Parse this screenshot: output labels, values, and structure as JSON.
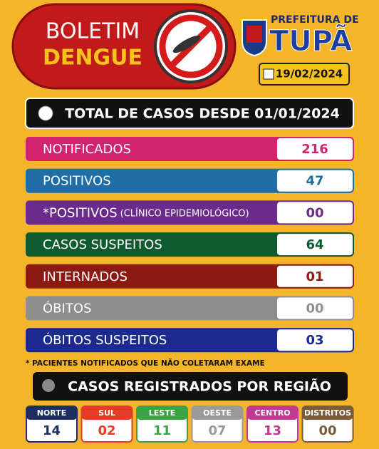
{
  "header": {
    "title_line1": "BOLETIM",
    "title_line2": "DENGUE",
    "org_line1": "PREFEITURA DE",
    "org_line2": "TUPÃ",
    "date": "19/02/2024"
  },
  "total": {
    "title": "TOTAL DE CASOS DESDE 01/01/2024"
  },
  "rows": [
    {
      "label": "NOTIFICADOS",
      "value": "216",
      "color": "#d2236f"
    },
    {
      "label": "POSITIVOS",
      "value": "47",
      "color": "#1f6fa6"
    },
    {
      "label": "*POSITIVOS",
      "label_note": "(CLÍNICO EPIDEMIOLÓGICO)",
      "value": "00",
      "color": "#6a2b8c"
    },
    {
      "label": "CASOS SUSPEITOS",
      "value": "64",
      "color": "#0f5a2e"
    },
    {
      "label": "INTERNADOS",
      "value": "01",
      "color": "#8c1a12"
    },
    {
      "label": "ÓBITOS",
      "value": "00",
      "color": "#8e8e8e"
    },
    {
      "label": "ÓBITOS SUSPEITOS",
      "value": "03",
      "color": "#1c2a8e"
    }
  ],
  "footnote": "* PACIENTES NOTIFICADOS QUE NÃO COLETARAM EXAME",
  "regions": {
    "title": "CASOS REGISTRADOS POR REGIÃO",
    "items": [
      {
        "name": "NORTE",
        "value": "14",
        "color": "#1d2f5e"
      },
      {
        "name": "SUL",
        "value": "02",
        "color": "#e63b24"
      },
      {
        "name": "LESTE",
        "value": "11",
        "color": "#3aa343"
      },
      {
        "name": "OESTE",
        "value": "07",
        "color": "#9a9a9a"
      },
      {
        "name": "CENTRO",
        "value": "13",
        "color": "#c23a8f"
      },
      {
        "name": "DISTRITOS",
        "value": "00",
        "color": "#7b5b3a"
      }
    ]
  }
}
